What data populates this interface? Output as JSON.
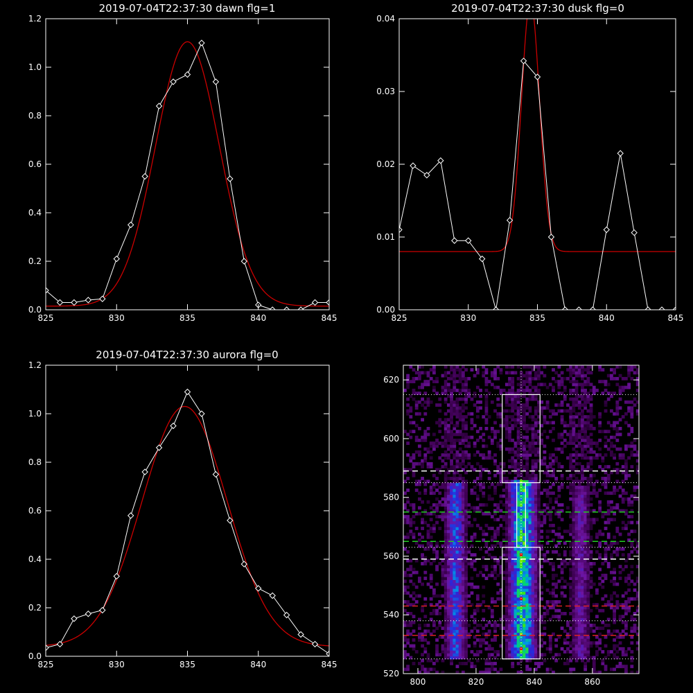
{
  "chart_data": [
    {
      "type": "line",
      "title": "2019-07-04T22:37:30 dawn flg=1",
      "xlim": [
        825,
        845
      ],
      "ylim": [
        0,
        1.2
      ],
      "xticks": [
        825,
        830,
        835,
        840,
        845
      ],
      "yticks": [
        0.0,
        0.2,
        0.4,
        0.6,
        0.8,
        1.0,
        1.2
      ],
      "ytick_labels": [
        "0.0",
        "0.2",
        "0.4",
        "0.6",
        "0.8",
        "1.0",
        "1.2"
      ],
      "colors": {
        "data": "#ffffff",
        "fit": "#cc0000"
      },
      "series": [
        {
          "role": "data",
          "x": [
            825,
            826,
            827,
            828,
            829,
            830,
            831,
            832,
            833,
            834,
            835,
            836,
            837,
            838,
            839,
            840,
            841,
            842,
            843,
            844,
            845
          ],
          "y": [
            0.08,
            0.03,
            0.03,
            0.04,
            0.045,
            0.21,
            0.35,
            0.55,
            0.84,
            0.94,
            0.97,
            1.1,
            0.94,
            0.54,
            0.2,
            0.02,
            0.0,
            0.0,
            0.0,
            0.03,
            0.03
          ]
        },
        {
          "role": "fit",
          "gaussian": {
            "amplitude": 1.09,
            "center": 835.0,
            "sigma": 2.25,
            "offset": 0.015
          }
        }
      ]
    },
    {
      "type": "line",
      "title": "2019-07-04T22:37:30 dusk flg=0",
      "xlim": [
        825,
        845
      ],
      "ylim": [
        0,
        0.04
      ],
      "xticks": [
        825,
        830,
        835,
        840,
        845
      ],
      "yticks": [
        0.0,
        0.01,
        0.02,
        0.03,
        0.04
      ],
      "ytick_labels": [
        "0.00",
        "0.01",
        "0.02",
        "0.03",
        "0.04"
      ],
      "colors": {
        "data": "#ffffff",
        "fit": "#cc0000"
      },
      "series": [
        {
          "role": "data",
          "x": [
            825,
            826,
            827,
            828,
            829,
            830,
            831,
            832,
            833,
            834,
            835,
            836,
            837,
            838,
            839,
            840,
            841,
            842,
            843,
            844,
            845
          ],
          "y": [
            0.011,
            0.0198,
            0.0185,
            0.0205,
            0.0095,
            0.0095,
            0.007,
            0.0,
            0.0123,
            0.0342,
            0.032,
            0.01,
            0.0,
            0.0,
            0.0,
            0.011,
            0.0215,
            0.0106,
            0.0,
            0.0,
            0.0
          ]
        },
        {
          "role": "fit",
          "gaussian": {
            "amplitude": 0.0345,
            "center": 834.5,
            "sigma": 0.65,
            "offset": 0.008
          }
        }
      ]
    },
    {
      "type": "line",
      "title": "2019-07-04T22:37:30 aurora flg=0",
      "xlim": [
        825,
        845
      ],
      "ylim": [
        0,
        1.2
      ],
      "xticks": [
        825,
        830,
        835,
        840,
        845
      ],
      "yticks": [
        0.0,
        0.2,
        0.4,
        0.6,
        0.8,
        1.0,
        1.2
      ],
      "ytick_labels": [
        "0.0",
        "0.2",
        "0.4",
        "0.6",
        "0.8",
        "1.0",
        "1.2"
      ],
      "colors": {
        "data": "#ffffff",
        "fit": "#cc0000"
      },
      "series": [
        {
          "role": "data",
          "x": [
            825,
            826,
            827,
            828,
            829,
            830,
            831,
            832,
            833,
            834,
            835,
            836,
            837,
            838,
            839,
            840,
            841,
            842,
            843,
            844,
            845
          ],
          "y": [
            0.035,
            0.05,
            0.155,
            0.175,
            0.19,
            0.33,
            0.58,
            0.76,
            0.86,
            0.95,
            1.09,
            1.0,
            0.75,
            0.56,
            0.38,
            0.28,
            0.25,
            0.17,
            0.09,
            0.05,
            0.01
          ]
        },
        {
          "role": "fit",
          "gaussian": {
            "amplitude": 0.99,
            "center": 834.8,
            "sigma": 3.0,
            "offset": 0.04
          }
        }
      ]
    },
    {
      "type": "heatmap",
      "title": "",
      "xlim": [
        795,
        876
      ],
      "ylim": [
        520,
        625
      ],
      "xticks": [
        800,
        820,
        840,
        860
      ],
      "yticks": [
        520,
        540,
        560,
        580,
        600,
        620
      ],
      "bands": [
        {
          "x_center": 813,
          "x_halfwidth": 3,
          "y_range": [
            525,
            584
          ],
          "peak": 0.45
        },
        {
          "x_center": 836,
          "x_halfwidth": 4,
          "y_range": [
            525,
            585
          ],
          "peak": 0.75
        },
        {
          "x_center": 856,
          "x_halfwidth": 3,
          "y_range": [
            525,
            583
          ],
          "peak": 0.25
        }
      ],
      "hot_spots": [
        [
          835,
          560
        ],
        [
          835,
          545
        ],
        [
          835,
          528
        ]
      ],
      "vertical_dotted_line_x": 835,
      "boxes": [
        {
          "x": [
            829,
            842
          ],
          "y": [
            585,
            615
          ],
          "color": "#ffffff"
        },
        {
          "x": [
            829,
            842
          ],
          "y": [
            525,
            563
          ],
          "color": "#ffffff"
        },
        {
          "x": [
            834,
            837
          ],
          "y": [
            563,
            585
          ],
          "color": "#ffffff"
        }
      ],
      "horizontal_lines": [
        {
          "y": 615,
          "style": "dotted",
          "color": "#ffffff"
        },
        {
          "y": 589,
          "style": "dashed",
          "color": "#ffffff"
        },
        {
          "y": 585,
          "style": "dotted",
          "color": "#ffffff"
        },
        {
          "y": 575,
          "style": "dashed",
          "color": "#22cc22"
        },
        {
          "y": 565,
          "style": "dashed",
          "color": "#22cc22"
        },
        {
          "y": 563,
          "style": "dotted",
          "color": "#ffffff"
        },
        {
          "y": 559,
          "style": "dashed",
          "color": "#ffffff"
        },
        {
          "y": 543,
          "style": "dashed",
          "color": "#dd2222"
        },
        {
          "y": 538,
          "style": "dotted",
          "color": "#ffffff"
        },
        {
          "y": 533,
          "style": "dashed",
          "color": "#dd2222"
        },
        {
          "y": 525,
          "style": "dotted",
          "color": "#ffffff"
        }
      ]
    }
  ]
}
